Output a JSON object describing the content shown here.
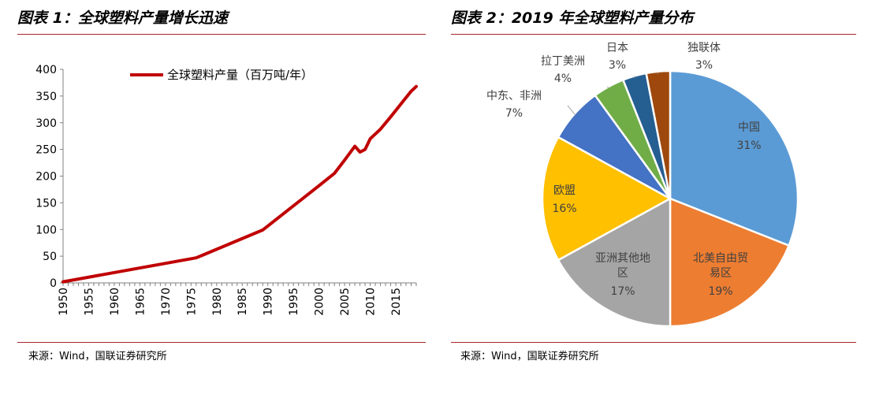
{
  "left_panel": {
    "title": "图表 1：全球塑料产量增长迅速",
    "source": "来源：Wind，国联证券研究所"
  },
  "right_panel": {
    "title": "图表 2：2019 年全球塑料产量分布",
    "source": "来源：Wind，国联证券研究所"
  },
  "colors": {
    "rule": "#a8262a",
    "line": "#c00000",
    "axis": "#808080"
  },
  "chart_data": [
    {
      "type": "line",
      "title": "",
      "legend": "全球塑料产量（百万吨/年）",
      "legend_position": "top",
      "xlabel": "",
      "ylabel": "",
      "xlim": [
        1950,
        2019
      ],
      "ylim": [
        0,
        400
      ],
      "x_ticks": [
        "1950",
        "1955",
        "1960",
        "1965",
        "1970",
        "1975",
        "1980",
        "1985",
        "1990",
        "1995",
        "2000",
        "2005",
        "2010",
        "2015"
      ],
      "y_ticks": [
        "0",
        "50",
        "100",
        "150",
        "200",
        "250",
        "300",
        "350",
        "400"
      ],
      "series": [
        {
          "name": "全球塑料产量（百万吨/年）",
          "x": [
            1950,
            1976,
            1989,
            2000,
            2003,
            2005,
            2007,
            2008,
            2009,
            2010,
            2012,
            2014,
            2016,
            2018,
            2019
          ],
          "y": [
            2,
            47,
            99,
            182,
            205,
            230,
            256,
            245,
            250,
            270,
            288,
            311,
            335,
            359,
            368
          ]
        }
      ]
    },
    {
      "type": "pie",
      "title": "",
      "slices": [
        {
          "label": "中国",
          "pct_label": "31%",
          "value": 31,
          "color": "#5b9bd5"
        },
        {
          "label": "北美自由贸易区",
          "label_lines": [
            "北美自由贸",
            "易区"
          ],
          "pct_label": "19%",
          "value": 19,
          "color": "#ed7d31"
        },
        {
          "label": "亚洲其他地区",
          "label_lines": [
            "亚洲其他地",
            "区"
          ],
          "pct_label": "17%",
          "value": 17,
          "color": "#a5a5a5"
        },
        {
          "label": "欧盟",
          "pct_label": "16%",
          "value": 16,
          "color": "#ffc000"
        },
        {
          "label": "中东、非洲",
          "pct_label": "7%",
          "value": 7,
          "color": "#4472c4"
        },
        {
          "label": "拉丁美洲",
          "pct_label": "4%",
          "value": 4,
          "color": "#70ad47"
        },
        {
          "label": "日本",
          "pct_label": "3%",
          "value": 3,
          "color": "#255e91"
        },
        {
          "label": "独联体",
          "pct_label": "3%",
          "value": 3,
          "color": "#9e480e"
        }
      ]
    }
  ]
}
